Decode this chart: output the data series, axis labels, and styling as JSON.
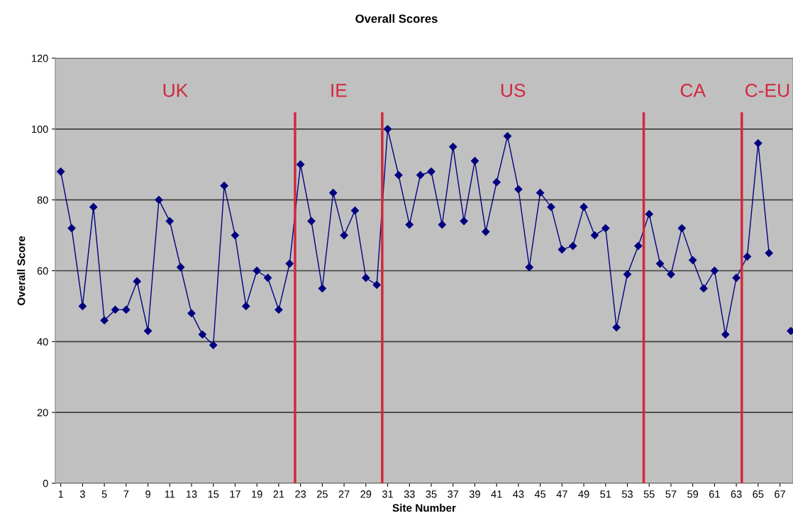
{
  "chart_data": {
    "type": "line",
    "title": "Overall Scores",
    "xlabel": "Site Number",
    "ylabel": "Overall Score",
    "x": [
      1,
      2,
      3,
      4,
      5,
      6,
      7,
      8,
      9,
      10,
      11,
      12,
      13,
      14,
      15,
      16,
      17,
      18,
      19,
      20,
      21,
      22,
      23,
      24,
      25,
      26,
      27,
      28,
      29,
      30,
      31,
      32,
      33,
      34,
      35,
      36,
      37,
      38,
      39,
      40,
      41,
      42,
      43,
      44,
      45,
      46,
      47,
      48,
      49,
      50,
      51,
      52,
      53,
      54,
      55,
      56,
      57,
      58,
      59,
      60,
      61,
      62,
      63,
      64,
      65,
      66,
      67,
      68
    ],
    "series": [
      {
        "color": "#000080",
        "values": [
          88,
          72,
          50,
          78,
          46,
          49,
          49,
          57,
          43,
          80,
          74,
          61,
          48,
          42,
          39,
          84,
          70,
          50,
          60,
          58,
          49,
          62,
          90,
          74,
          55,
          82,
          70,
          77,
          58,
          56,
          100,
          87,
          73,
          87,
          88,
          73,
          95,
          74,
          91,
          71,
          85,
          98,
          83,
          61,
          82,
          78,
          66,
          67,
          78,
          70,
          72,
          44,
          59,
          67,
          76,
          62,
          59,
          72,
          63,
          55,
          60,
          42,
          58,
          64,
          96,
          65,
          null,
          43
        ]
      }
    ],
    "xlim": [
      0.5,
      68.2
    ],
    "xticks": [
      1,
      3,
      5,
      7,
      9,
      11,
      13,
      15,
      17,
      19,
      21,
      23,
      25,
      27,
      29,
      31,
      33,
      35,
      37,
      39,
      41,
      43,
      45,
      47,
      49,
      51,
      53,
      55,
      57,
      59,
      61,
      63,
      65,
      67
    ],
    "ylim": [
      0,
      120
    ],
    "yticks": [
      0,
      20,
      40,
      60,
      80,
      100,
      120
    ],
    "grid": "y",
    "legend": false,
    "marker": "diamond",
    "line_style": "solid",
    "ref_lines": [
      {
        "axis": "x",
        "value": 22.5,
        "color": "#d2283c"
      },
      {
        "axis": "x",
        "value": 30.5,
        "color": "#d2283c"
      },
      {
        "axis": "x",
        "value": 54.5,
        "color": "#d2283c"
      },
      {
        "axis": "x",
        "value": 63.5,
        "color": "#d2283c"
      }
    ],
    "annotations": [
      "UK",
      "IE",
      "US",
      "CA",
      "C-EU"
    ]
  }
}
